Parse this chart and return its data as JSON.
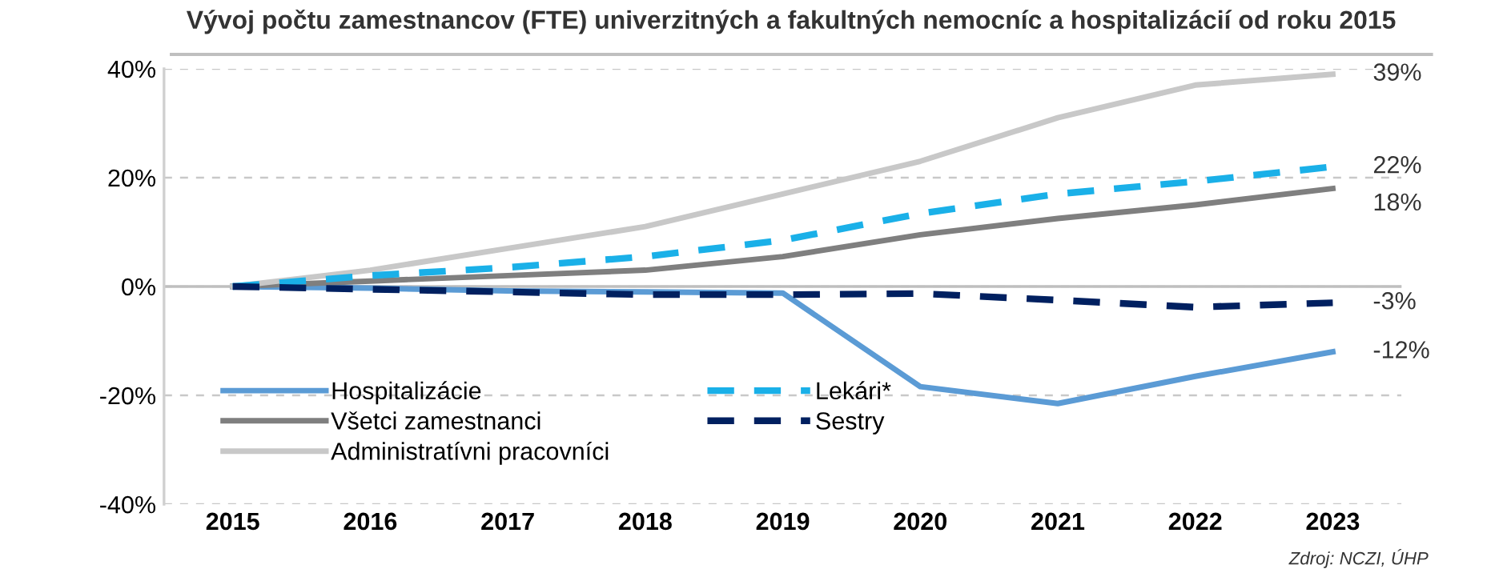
{
  "chart_data": {
    "type": "line",
    "title": "Vývoj počtu zamestnancov (FTE) univerzitných a fakultných nemocníc a hospitalizácií od roku 2015",
    "categories": [
      "2015",
      "2016",
      "2017",
      "2018",
      "2019",
      "2020",
      "2021",
      "2022",
      "2023"
    ],
    "series": [
      {
        "name": "Hospitalizácie",
        "color": "#5b9bd5",
        "line_style": "solid",
        "values": [
          0,
          -0.3,
          -0.8,
          -1,
          -1.2,
          -18.4,
          -21.5,
          -16.5,
          -12
        ]
      },
      {
        "name": "Všetci zamestnanci",
        "color": "#7f7f7f",
        "line_style": "solid",
        "values": [
          0,
          1,
          2,
          3,
          5.5,
          9.5,
          12.5,
          15,
          18
        ]
      },
      {
        "name": "Administratívni pracovníci",
        "color": "#c8c8c8",
        "line_style": "solid",
        "values": [
          0,
          3,
          7,
          11,
          17,
          23,
          31,
          37,
          39
        ]
      },
      {
        "name": "Lekári*",
        "color": "#1ab0e8",
        "line_style": "dashed",
        "values": [
          0,
          2,
          3.5,
          5.5,
          8.5,
          13.4,
          17,
          19.3,
          22
        ]
      },
      {
        "name": "Sestry",
        "color": "#002060",
        "line_style": "dashed",
        "values": [
          0,
          -0.5,
          -1,
          -1.5,
          -1.5,
          -1.3,
          -2.5,
          -3.8,
          -3
        ]
      }
    ],
    "ylim": [
      -40,
      40
    ],
    "yticks": [
      {
        "value": -40,
        "label": "-40%"
      },
      {
        "value": -20,
        "label": "-20%"
      },
      {
        "value": 0,
        "label": "0%"
      },
      {
        "value": 20,
        "label": "20%"
      },
      {
        "value": 40,
        "label": "40%"
      }
    ],
    "grid": "y",
    "legend": "bottom left",
    "marker": "none",
    "annotations": [
      {
        "text": "39%",
        "x": "2023",
        "y": 39
      },
      {
        "text": "22%",
        "x": "2023",
        "y": 22
      },
      {
        "text": "18%",
        "x": "2023",
        "y": 18
      },
      {
        "text": "-3%",
        "x": "2023",
        "y": -3
      },
      {
        "text": "-12%",
        "x": "2023",
        "y": -12
      },
      "Zdroj: NCZI, ÚHP"
    ]
  }
}
